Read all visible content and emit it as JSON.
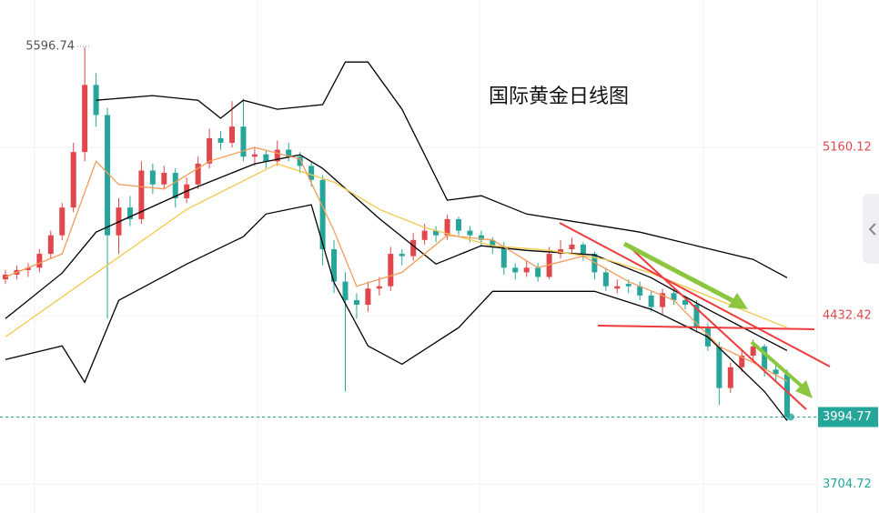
{
  "chart_data": {
    "type": "candlestick",
    "title": "国际黄金日线图",
    "ylim": [
      3580,
      5797
    ],
    "yticks": [
      5160.12,
      4432.42,
      3704.72
    ],
    "grid": true,
    "up_color": "#e0474c",
    "down_color": "#26a69a",
    "high_label": 5596.74,
    "last_price": 3994.77,
    "ohlc": [
      [
        4590,
        4630,
        4570,
        4610
      ],
      [
        4610,
        4650,
        4590,
        4630
      ],
      [
        4630,
        4660,
        4600,
        4640
      ],
      [
        4640,
        4720,
        4620,
        4700
      ],
      [
        4700,
        4800,
        4680,
        4780
      ],
      [
        4780,
        4920,
        4760,
        4900
      ],
      [
        4900,
        5180,
        4880,
        5140
      ],
      [
        5140,
        5593,
        5100,
        5430
      ],
      [
        5430,
        5480,
        5250,
        5300
      ],
      [
        5300,
        5330,
        4420,
        4780
      ],
      [
        4780,
        4940,
        4700,
        4900
      ],
      [
        4900,
        4950,
        4820,
        4850
      ],
      [
        4850,
        5100,
        4830,
        5060
      ],
      [
        5060,
        5090,
        4960,
        5000
      ],
      [
        5000,
        5080,
        4980,
        5050
      ],
      [
        5050,
        5070,
        4900,
        4940
      ],
      [
        4940,
        5030,
        4920,
        5000
      ],
      [
        5000,
        5120,
        4980,
        5090
      ],
      [
        5090,
        5240,
        5070,
        5200
      ],
      [
        5200,
        5230,
        5150,
        5180
      ],
      [
        5180,
        5360,
        5160,
        5250
      ],
      [
        5250,
        5370,
        5100,
        5120
      ],
      [
        5120,
        5160,
        5080,
        5130
      ],
      [
        5130,
        5150,
        5070,
        5100
      ],
      [
        5100,
        5190,
        5080,
        5150
      ],
      [
        5150,
        5180,
        5100,
        5120
      ],
      [
        5120,
        5140,
        5050,
        5080
      ],
      [
        5080,
        5100,
        4990,
        5020
      ],
      [
        5020,
        5040,
        4650,
        4720
      ],
      [
        4720,
        4760,
        4530,
        4580
      ],
      [
        4580,
        4620,
        4105,
        4500
      ],
      [
        4500,
        4530,
        4420,
        4480
      ],
      [
        4480,
        4580,
        4450,
        4550
      ],
      [
        4550,
        4600,
        4520,
        4560
      ],
      [
        4560,
        4730,
        4540,
        4700
      ],
      [
        4700,
        4720,
        4650,
        4690
      ],
      [
        4690,
        4790,
        4670,
        4760
      ],
      [
        4760,
        4830,
        4740,
        4800
      ],
      [
        4800,
        4820,
        4750,
        4780
      ],
      [
        4780,
        4870,
        4760,
        4850
      ],
      [
        4850,
        4860,
        4780,
        4800
      ],
      [
        4800,
        4820,
        4750,
        4780
      ],
      [
        4780,
        4800,
        4730,
        4760
      ],
      [
        4760,
        4770,
        4700,
        4730
      ],
      [
        4730,
        4750,
        4610,
        4640
      ],
      [
        4640,
        4660,
        4590,
        4620
      ],
      [
        4620,
        4670,
        4600,
        4640
      ],
      [
        4640,
        4660,
        4580,
        4600
      ],
      [
        4600,
        4730,
        4590,
        4700
      ],
      [
        4700,
        4760,
        4680,
        4720
      ],
      [
        4720,
        4770,
        4700,
        4740
      ],
      [
        4740,
        4750,
        4670,
        4700
      ],
      [
        4700,
        4710,
        4590,
        4620
      ],
      [
        4620,
        4640,
        4540,
        4560
      ],
      [
        4550,
        4590,
        4530,
        4560
      ],
      [
        4570,
        4590,
        4530,
        4560
      ],
      [
        4560,
        4580,
        4500,
        4520
      ],
      [
        4520,
        4540,
        4450,
        4470
      ],
      [
        4470,
        4550,
        4440,
        4530
      ],
      [
        4530,
        4550,
        4480,
        4500
      ],
      [
        4500,
        4520,
        4460,
        4480
      ],
      [
        4480,
        4500,
        4360,
        4380
      ],
      [
        4380,
        4400,
        4280,
        4300
      ],
      [
        4300,
        4320,
        4046,
        4120
      ],
      [
        4120,
        4230,
        4100,
        4210
      ],
      [
        4210,
        4290,
        4190,
        4260
      ],
      [
        4260,
        4330,
        4240,
        4300
      ],
      [
        4300,
        4310,
        4170,
        4200
      ],
      [
        4200,
        4220,
        4150,
        4180
      ],
      [
        4180,
        4200,
        3980,
        3995
      ]
    ],
    "series": [
      {
        "color": "#000000",
        "x": [
          8,
          13,
          17,
          19,
          21,
          24,
          28,
          30,
          32,
          35,
          39,
          42,
          46,
          51,
          56,
          61,
          66,
          69
        ],
        "values": [
          5364,
          5384,
          5364,
          5286,
          5364,
          5325,
          5345,
          5529,
          5529,
          5325,
          4932,
          4951,
          4872,
          4833,
          4794,
          4735,
          4676,
          4597
        ]
      },
      {
        "color": "#000000",
        "x": [
          0,
          5,
          7,
          10,
          16,
          21,
          23,
          27,
          29,
          32,
          35,
          40,
          43,
          46,
          52,
          57,
          62,
          67,
          69
        ],
        "values": [
          4243,
          4302,
          4145,
          4499,
          4656,
          4774,
          4872,
          4912,
          4577,
          4302,
          4223,
          4381,
          4538,
          4538,
          4538,
          4460,
          4341,
          4105,
          3979
        ]
      },
      {
        "color": "#000000",
        "x": [
          0,
          5,
          8,
          16,
          22,
          26,
          28,
          33,
          38,
          42,
          46,
          52,
          57,
          62,
          69
        ],
        "values": [
          4420,
          4617,
          4794,
          4971,
          5089,
          5128,
          5069,
          4853,
          4656,
          4735,
          4715,
          4695,
          4597,
          4460,
          4282
        ]
      },
      {
        "color": "#f2c94c",
        "x": [
          0,
          8,
          16,
          24,
          29,
          33,
          37,
          43,
          48,
          53,
          57,
          62,
          69
        ],
        "values": [
          4341,
          4617,
          4892,
          5089,
          5010,
          4892,
          4814,
          4735,
          4715,
          4676,
          4617,
          4518,
          4381
        ]
      },
      {
        "color": "#f39c5a",
        "x": [
          0,
          5,
          8,
          10,
          14,
          18,
          22,
          26,
          29,
          31,
          35,
          39,
          43,
          47,
          51,
          55,
          59,
          63,
          66,
          69
        ],
        "values": [
          4600,
          4700,
          5100,
          5000,
          4980,
          5100,
          5160,
          5110,
          4800,
          4560,
          4620,
          4780,
          4760,
          4640,
          4690,
          4580,
          4500,
          4300,
          4230,
          4150
        ]
      }
    ]
  }
}
